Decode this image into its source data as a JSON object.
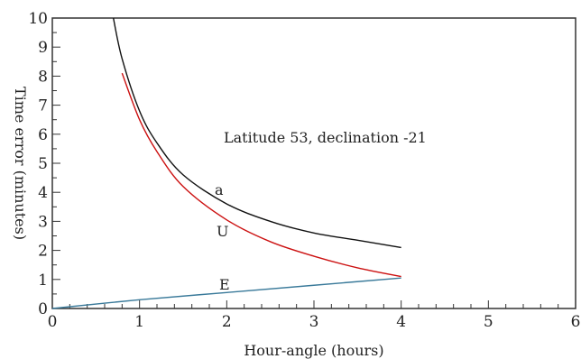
{
  "chart_data": {
    "type": "line",
    "title": "",
    "annotation": "Latitude 53, declination -21",
    "xlabel": "Hour-angle (hours)",
    "ylabel": "Time error (minutes)",
    "xlim": [
      0,
      6
    ],
    "ylim": [
      0,
      10
    ],
    "x_ticks": [
      "0",
      "1",
      "2",
      "3",
      "4",
      "5",
      "6"
    ],
    "y_ticks": [
      "0",
      "1",
      "2",
      "3",
      "4",
      "5",
      "6",
      "7",
      "8",
      "9",
      "10"
    ],
    "grid": false,
    "series": [
      {
        "name": "a",
        "color": "#111111",
        "points": [
          [
            0.7,
            10.0
          ],
          [
            0.8,
            8.6
          ],
          [
            1.0,
            6.8
          ],
          [
            1.2,
            5.7
          ],
          [
            1.5,
            4.6
          ],
          [
            2.0,
            3.6
          ],
          [
            2.5,
            3.0
          ],
          [
            3.0,
            2.6
          ],
          [
            3.5,
            2.35
          ],
          [
            4.0,
            2.1
          ]
        ]
      },
      {
        "name": "U",
        "color": "#cc1111",
        "points": [
          [
            0.8,
            8.1
          ],
          [
            1.0,
            6.5
          ],
          [
            1.2,
            5.4
          ],
          [
            1.5,
            4.2
          ],
          [
            2.0,
            3.05
          ],
          [
            2.5,
            2.3
          ],
          [
            3.0,
            1.8
          ],
          [
            3.5,
            1.4
          ],
          [
            4.0,
            1.1
          ]
        ]
      },
      {
        "name": "E",
        "color": "#3a7a9a",
        "points": [
          [
            0.0,
            0.0
          ],
          [
            1.0,
            0.3
          ],
          [
            2.0,
            0.55
          ],
          [
            3.0,
            0.8
          ],
          [
            4.0,
            1.05
          ]
        ]
      }
    ]
  }
}
